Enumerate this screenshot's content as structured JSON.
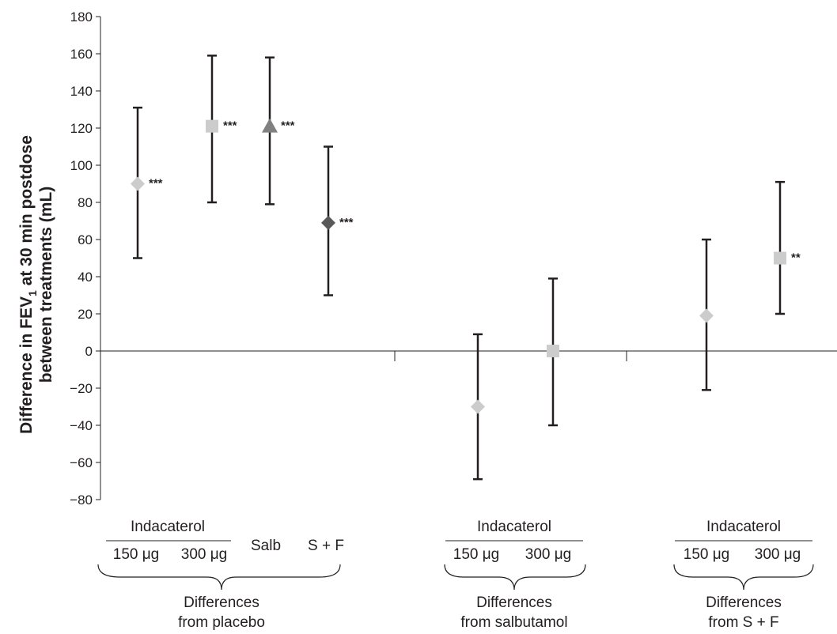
{
  "chart_data": {
    "type": "scatter",
    "ylabel": "Difference in FEV1 at 30 min postdose between treatments (mL)",
    "ylabel_parts": {
      "line1_prefix": "Difference in FEV",
      "line1_subscript": "1",
      "line1_suffix": " at 30 min postdose",
      "line2": "between treatments (mL)"
    },
    "ylim": [
      -80,
      180
    ],
    "yticks": [
      "180",
      "160",
      "140",
      "120",
      "100",
      "80",
      "60",
      "40",
      "20",
      "0",
      "-20",
      "-40",
      "-60",
      "-80"
    ],
    "grid": false,
    "points": [
      {
        "x": 1,
        "y": 90,
        "low": 50,
        "high": 131,
        "marker": "diamond",
        "color": "#cccccc",
        "sig": "***"
      },
      {
        "x": 2,
        "y": 121,
        "low": 80,
        "high": 159,
        "marker": "square",
        "color": "#cccccc",
        "sig": "***"
      },
      {
        "x": 3,
        "y": 121,
        "low": 79,
        "high": 158,
        "marker": "triangle",
        "color": "#808080",
        "sig": "***"
      },
      {
        "x": 4,
        "y": 69,
        "low": 30,
        "high": 110,
        "marker": "diamond",
        "color": "#595959",
        "sig": "***"
      },
      {
        "x": 5,
        "y": -30,
        "low": -69,
        "high": 9,
        "marker": "diamond",
        "color": "#cccccc",
        "sig": ""
      },
      {
        "x": 6,
        "y": 0,
        "low": -40,
        "high": 39,
        "marker": "square",
        "color": "#cccccc",
        "sig": ""
      },
      {
        "x": 7,
        "y": 19,
        "low": -21,
        "high": 60,
        "marker": "diamond",
        "color": "#cccccc",
        "sig": ""
      },
      {
        "x": 8,
        "y": 50,
        "low": 20,
        "high": 91,
        "marker": "square",
        "color": "#cccccc",
        "sig": "**"
      }
    ],
    "groups": [
      {
        "indacaterol": "Indacaterol",
        "dose1": "150 μg",
        "dose2": "300 μg",
        "extra1": "Salb",
        "extra2": "S + F",
        "caption_line1": "Differences",
        "caption_line2": "from placebo"
      },
      {
        "indacaterol": "Indacaterol",
        "dose1": "150 μg",
        "dose2": "300 μg",
        "caption_line1": "Differences",
        "caption_line2": "from salbutamol"
      },
      {
        "indacaterol": "Indacaterol",
        "dose1": "150 μg",
        "dose2": "300 μg",
        "caption_line1": "Differences",
        "caption_line2": "from S + F"
      }
    ]
  }
}
